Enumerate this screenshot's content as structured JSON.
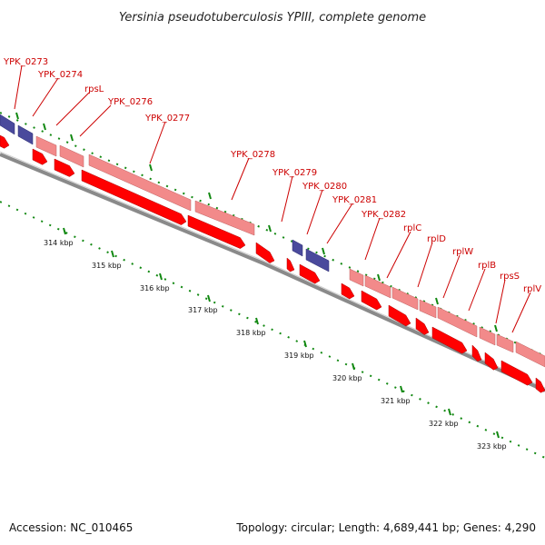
{
  "title": "Yersinia pseudotuberculosis YPIII, complete genome",
  "footer": {
    "accession": "Accession: NC_010465",
    "summary": "Topology: circular; Length: 4,689,441 bp; Genes: 4,290"
  },
  "colors": {
    "gene_forward": "#ff0000",
    "cds_feature": "#f28a8a",
    "rna_feature": "#4a4a9c",
    "backbone": "#8a8a8a",
    "gc_ticks": "#118811",
    "label": "#cc0000"
  },
  "scale_labels": [
    "314 kbp",
    "315 kbp",
    "316 kbp",
    "317 kbp",
    "318 kbp",
    "319 kbp",
    "320 kbp",
    "321 kbp",
    "322 kbp",
    "323 kbp"
  ],
  "gene_labels": [
    "YPK_0273",
    "YPK_0274",
    "rpsL",
    "YPK_0276",
    "YPK_0277",
    "YPK_0278",
    "YPK_0279",
    "YPK_0280",
    "YPK_0281",
    "YPK_0282",
    "rplC",
    "rplD",
    "rplW",
    "rplB",
    "rpsS",
    "rplV"
  ]
}
